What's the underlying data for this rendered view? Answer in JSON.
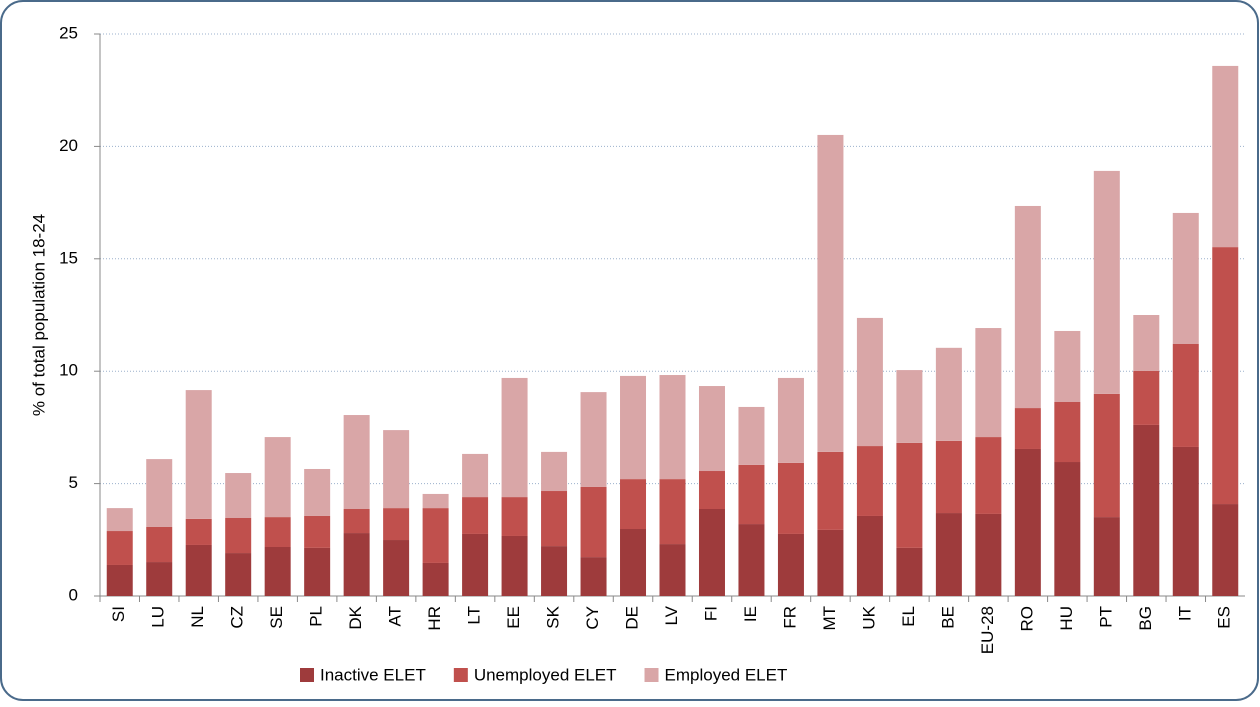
{
  "chart_data": {
    "type": "stacked-bar",
    "y_label": "% of total population 18-24",
    "categories": [
      "SI",
      "LU",
      "NL",
      "CZ",
      "SE",
      "PL",
      "DK",
      "AT",
      "HR",
      "LT",
      "EE",
      "SK",
      "CY",
      "DE",
      "LV",
      "FI",
      "IE",
      "FR",
      "MT",
      "UK",
      "EL",
      "BE",
      "EU-28",
      "RO",
      "HU",
      "PT",
      "BG",
      "IT",
      "ES"
    ],
    "series": [
      {
        "name": "Inactive ELET",
        "color": "#9e3b3c",
        "values": [
          1.38,
          1.51,
          2.27,
          1.91,
          2.18,
          2.14,
          2.8,
          2.49,
          1.47,
          2.76,
          2.67,
          2.22,
          1.73,
          2.98,
          2.31,
          3.87,
          3.2,
          2.76,
          2.94,
          3.56,
          2.14,
          3.69,
          3.65,
          6.54,
          5.96,
          3.51,
          7.61,
          6.63,
          4.09
        ]
      },
      {
        "name": "Unemployed ELET",
        "color": "#c0504d",
        "values": [
          1.51,
          1.56,
          1.16,
          1.56,
          1.33,
          1.42,
          1.07,
          1.42,
          2.44,
          1.64,
          1.73,
          2.45,
          3.12,
          2.22,
          2.89,
          1.69,
          2.63,
          3.16,
          3.47,
          3.11,
          4.67,
          3.21,
          3.42,
          1.82,
          2.67,
          5.48,
          2.4,
          4.58,
          11.43
        ]
      },
      {
        "name": "Employed ELET",
        "color": "#d9a6a7",
        "values": [
          1.02,
          3.02,
          5.73,
          2.0,
          3.56,
          2.09,
          4.18,
          3.47,
          0.63,
          1.92,
          5.3,
          1.74,
          4.22,
          4.59,
          4.63,
          3.78,
          2.58,
          3.78,
          14.1,
          5.7,
          3.24,
          4.14,
          4.85,
          8.99,
          3.16,
          9.92,
          2.49,
          5.83,
          8.06
        ]
      }
    ],
    "ylim": [
      0,
      25
    ],
    "yticks": [
      0,
      5,
      10,
      15,
      20,
      25
    ],
    "grid": true
  }
}
